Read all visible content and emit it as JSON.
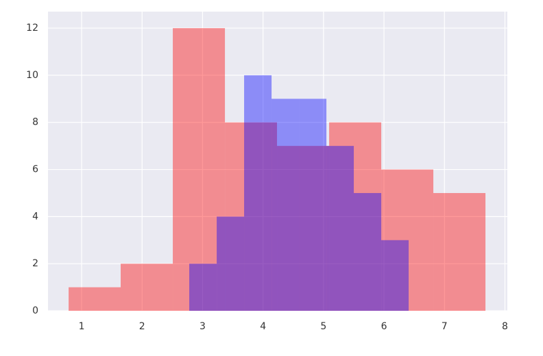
{
  "chart_data": {
    "type": "histogram",
    "series": [
      {
        "color": "#ff0000",
        "opacity": 0.4,
        "bins": [
          0.785,
          1.646,
          2.508,
          3.37,
          4.231,
          5.093,
          5.955,
          6.816,
          7.678
        ],
        "values": [
          1,
          2,
          12,
          8,
          7,
          8,
          6,
          5
        ]
      },
      {
        "color": "#0000ff",
        "opacity": 0.4,
        "bins": [
          2.78,
          3.234,
          3.687,
          4.141,
          4.594,
          5.048,
          5.501,
          5.955,
          6.408
        ],
        "values": [
          2,
          4,
          10,
          9,
          9,
          7,
          5,
          3
        ]
      }
    ],
    "xlim": [
      0.444,
      8.04
    ],
    "ylim": [
      0,
      12.7
    ],
    "xticks": [
      1,
      2,
      3,
      4,
      5,
      6,
      7,
      8
    ],
    "yticks": [
      0,
      2,
      4,
      6,
      8,
      10,
      12
    ],
    "grid": true,
    "background": "#eaeaf2"
  }
}
